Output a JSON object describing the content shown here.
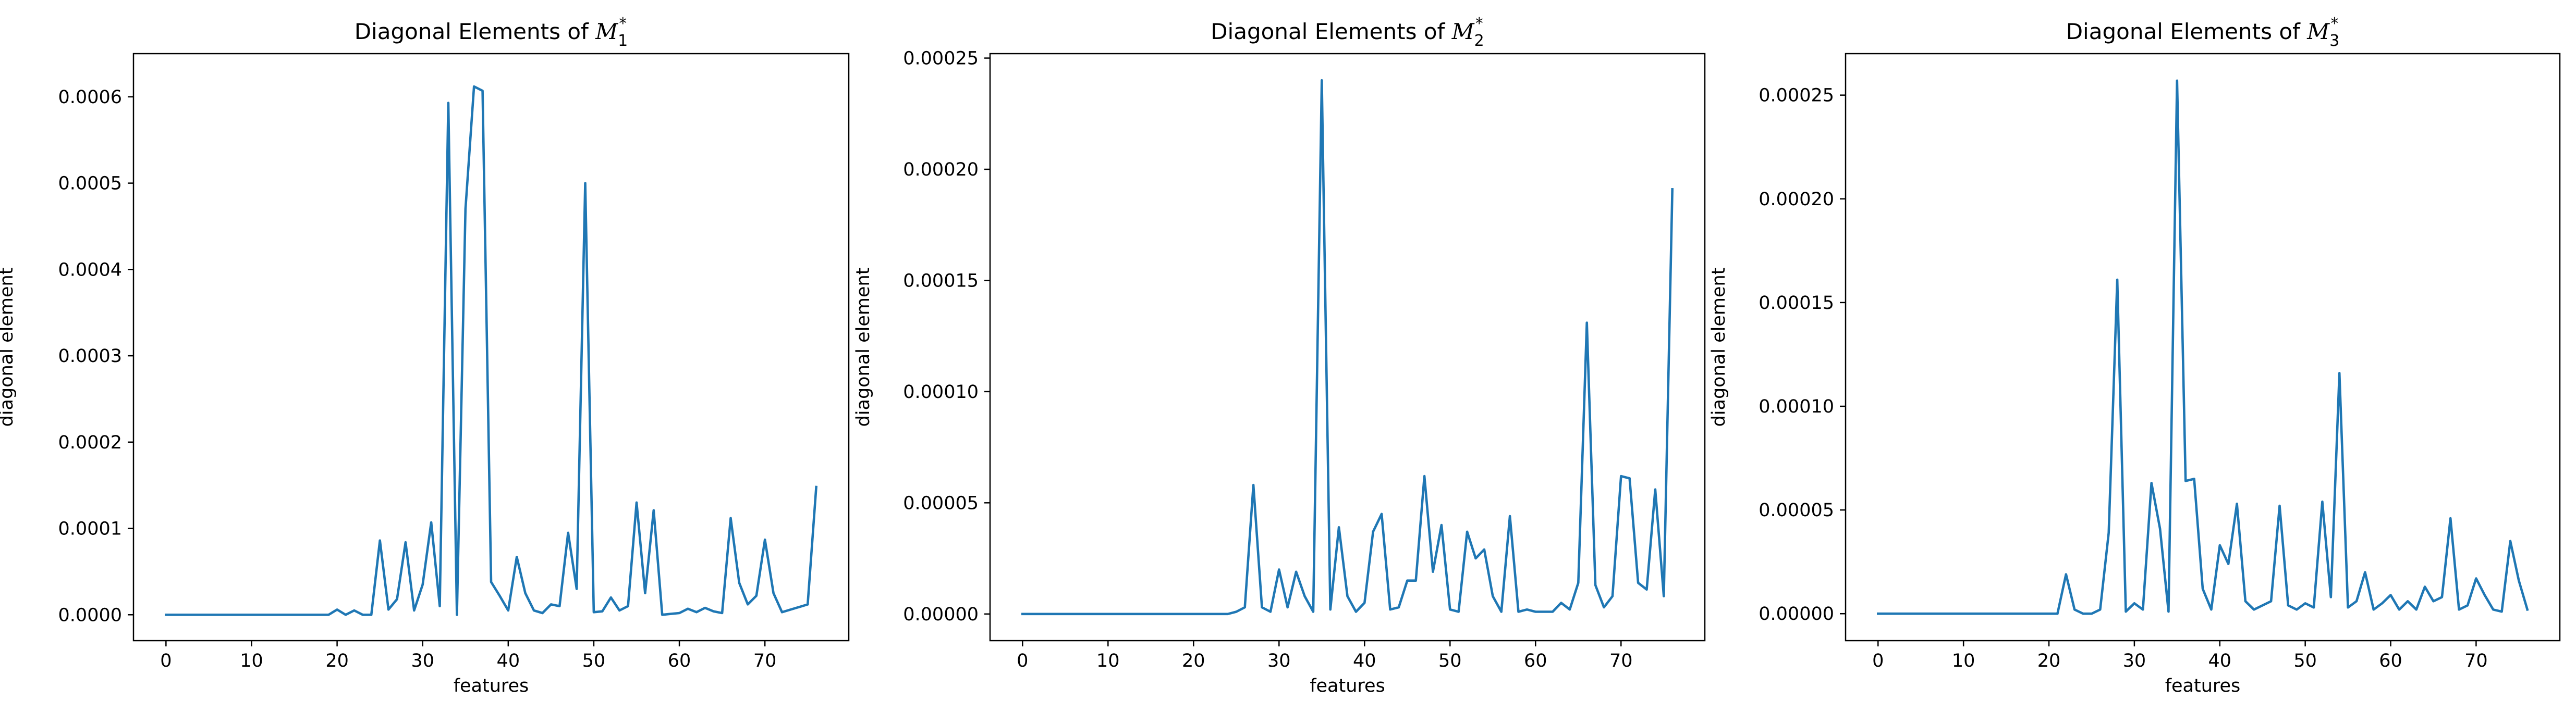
{
  "figure": {
    "line_color": "#1f77b4"
  },
  "chart_data": [
    {
      "type": "line",
      "title": "Diagonal Elements of M_1^*",
      "title_parts": {
        "prefix": "Diagonal Elements of ",
        "symbol": "M",
        "sub": "1",
        "sup": "*"
      },
      "xlabel": "features",
      "ylabel": "diagonal element",
      "xlim": [
        -3.8,
        79.8
      ],
      "ylim": [
        -3e-05,
        0.00065
      ],
      "xticks": [
        0,
        10,
        20,
        30,
        40,
        50,
        60,
        70
      ],
      "yticks": [
        0.0,
        0.0001,
        0.0002,
        0.0003,
        0.0004,
        0.0005,
        0.0006
      ],
      "ytick_labels": [
        "0.0000",
        "0.0001",
        "0.0002",
        "0.0003",
        "0.0004",
        "0.0005",
        "0.0006"
      ],
      "grid": false,
      "series": [
        {
          "x": [
            0,
            1,
            2,
            3,
            4,
            5,
            6,
            7,
            8,
            9,
            10,
            11,
            12,
            13,
            14,
            15,
            16,
            17,
            18,
            19,
            20,
            21,
            22,
            23,
            24,
            25,
            26,
            27,
            28,
            29,
            30,
            31,
            32,
            33,
            34,
            35,
            36,
            37,
            38,
            39,
            40,
            41,
            42,
            43,
            44,
            45,
            46,
            47,
            48,
            49,
            50,
            51,
            52,
            53,
            54,
            55,
            56,
            57,
            58,
            59,
            60,
            61,
            62,
            63,
            64,
            65,
            66,
            67,
            68,
            69,
            70,
            71,
            72,
            73,
            74,
            75,
            76
          ],
          "y": [
            0,
            0,
            0,
            0,
            0,
            0,
            0,
            0,
            0,
            0,
            0,
            0,
            0,
            0,
            0,
            0,
            0,
            0,
            0,
            0,
            6e-06,
            0,
            5e-06,
            0,
            0,
            8.6e-05,
            6e-06,
            1.8e-05,
            8.4e-05,
            5e-06,
            3.5e-05,
            0.000107,
            1e-05,
            0.000593,
            0,
            0.00047,
            0.000612,
            0.000607,
            3.8e-05,
            2.2e-05,
            5e-06,
            6.7e-05,
            2.5e-05,
            5e-06,
            2e-06,
            1.2e-05,
            1e-05,
            9.5e-05,
            3e-05,
            0.0005,
            3e-06,
            4e-06,
            2e-05,
            5e-06,
            1e-05,
            0.00013,
            2.5e-05,
            0.000121,
            0,
            1e-06,
            2e-06,
            7e-06,
            3e-06,
            8e-06,
            4e-06,
            2e-06,
            0.000112,
            3.7e-05,
            1.2e-05,
            2.2e-05,
            8.7e-05,
            2.5e-05,
            3e-06,
            6e-06,
            9e-06,
            1.2e-05,
            0.000148
          ]
        }
      ]
    },
    {
      "type": "line",
      "title": "Diagonal Elements of M_2^*",
      "title_parts": {
        "prefix": "Diagonal Elements of ",
        "symbol": "M",
        "sub": "2",
        "sup": "*"
      },
      "xlabel": "features",
      "ylabel": "diagonal element",
      "xlim": [
        -3.8,
        79.8
      ],
      "ylim": [
        -1.2e-05,
        0.000252
      ],
      "xticks": [
        0,
        10,
        20,
        30,
        40,
        50,
        60,
        70
      ],
      "yticks": [
        0.0,
        5e-05,
        0.0001,
        0.00015,
        0.0002,
        0.00025
      ],
      "ytick_labels": [
        "0.00000",
        "0.00005",
        "0.00010",
        "0.00015",
        "0.00020",
        "0.00025"
      ],
      "grid": false,
      "series": [
        {
          "x": [
            0,
            1,
            2,
            3,
            4,
            5,
            6,
            7,
            8,
            9,
            10,
            11,
            12,
            13,
            14,
            15,
            16,
            17,
            18,
            19,
            20,
            21,
            22,
            23,
            24,
            25,
            26,
            27,
            28,
            29,
            30,
            31,
            32,
            33,
            34,
            35,
            36,
            37,
            38,
            39,
            40,
            41,
            42,
            43,
            44,
            45,
            46,
            47,
            48,
            49,
            50,
            51,
            52,
            53,
            54,
            55,
            56,
            57,
            58,
            59,
            60,
            61,
            62,
            63,
            64,
            65,
            66,
            67,
            68,
            69,
            70,
            71,
            72,
            73,
            74,
            75,
            76
          ],
          "y": [
            0,
            0,
            0,
            0,
            0,
            0,
            0,
            0,
            0,
            0,
            0,
            0,
            0,
            0,
            0,
            0,
            0,
            0,
            0,
            0,
            0,
            0,
            0,
            0,
            0,
            1e-06,
            3e-06,
            5.8e-05,
            3e-06,
            1e-06,
            2e-05,
            3e-06,
            1.9e-05,
            8e-06,
            1e-06,
            0.00024,
            2e-06,
            3.9e-05,
            8e-06,
            1e-06,
            5e-06,
            3.7e-05,
            4.5e-05,
            2e-06,
            3e-06,
            1.5e-05,
            1.5e-05,
            6.2e-05,
            1.9e-05,
            4e-05,
            2e-06,
            1e-06,
            3.7e-05,
            2.5e-05,
            2.9e-05,
            8e-06,
            1e-06,
            4.4e-05,
            1e-06,
            2e-06,
            1e-06,
            1e-06,
            1e-06,
            5e-06,
            2e-06,
            1.4e-05,
            0.000131,
            1.3e-05,
            3e-06,
            8e-06,
            6.2e-05,
            6.1e-05,
            1.4e-05,
            1.1e-05,
            5.6e-05,
            8e-06,
            0.000191
          ]
        }
      ]
    },
    {
      "type": "line",
      "title": "Diagonal Elements of M_3^*",
      "title_parts": {
        "prefix": "Diagonal Elements of ",
        "symbol": "M",
        "sub": "3",
        "sup": "*"
      },
      "xlabel": "features",
      "ylabel": "diagonal element",
      "xlim": [
        -3.8,
        79.8
      ],
      "ylim": [
        -1.3e-05,
        0.00027
      ],
      "xticks": [
        0,
        10,
        20,
        30,
        40,
        50,
        60,
        70
      ],
      "yticks": [
        0.0,
        5e-05,
        0.0001,
        0.00015,
        0.0002,
        0.00025
      ],
      "ytick_labels": [
        "0.00000",
        "0.00005",
        "0.00010",
        "0.00015",
        "0.00020",
        "0.00025"
      ],
      "grid": false,
      "series": [
        {
          "x": [
            0,
            1,
            2,
            3,
            4,
            5,
            6,
            7,
            8,
            9,
            10,
            11,
            12,
            13,
            14,
            15,
            16,
            17,
            18,
            19,
            20,
            21,
            22,
            23,
            24,
            25,
            26,
            27,
            28,
            29,
            30,
            31,
            32,
            33,
            34,
            35,
            36,
            37,
            38,
            39,
            40,
            41,
            42,
            43,
            44,
            45,
            46,
            47,
            48,
            49,
            50,
            51,
            52,
            53,
            54,
            55,
            56,
            57,
            58,
            59,
            60,
            61,
            62,
            63,
            64,
            65,
            66,
            67,
            68,
            69,
            70,
            71,
            72,
            73,
            74,
            75,
            76
          ],
          "y": [
            0,
            0,
            0,
            0,
            0,
            0,
            0,
            0,
            0,
            0,
            0,
            0,
            0,
            0,
            0,
            0,
            0,
            0,
            0,
            0,
            0,
            0,
            1.9e-05,
            2e-06,
            0,
            0,
            2e-06,
            3.9e-05,
            0.000161,
            1e-06,
            5e-06,
            2e-06,
            6.3e-05,
            4.1e-05,
            1e-06,
            0.000257,
            6.4e-05,
            6.5e-05,
            1.2e-05,
            2e-06,
            3.3e-05,
            2.4e-05,
            5.3e-05,
            6e-06,
            2e-06,
            4e-06,
            6e-06,
            5.2e-05,
            4e-06,
            2e-06,
            5e-06,
            3e-06,
            5.4e-05,
            8e-06,
            0.000116,
            3e-06,
            6e-06,
            2e-05,
            2e-06,
            5e-06,
            9e-06,
            2e-06,
            6e-06,
            2e-06,
            1.3e-05,
            6e-06,
            8e-06,
            4.6e-05,
            2e-06,
            4e-06,
            1.7e-05,
            9e-06,
            2e-06,
            1e-06,
            3.5e-05,
            1.6e-05,
            2e-06
          ]
        }
      ]
    }
  ]
}
